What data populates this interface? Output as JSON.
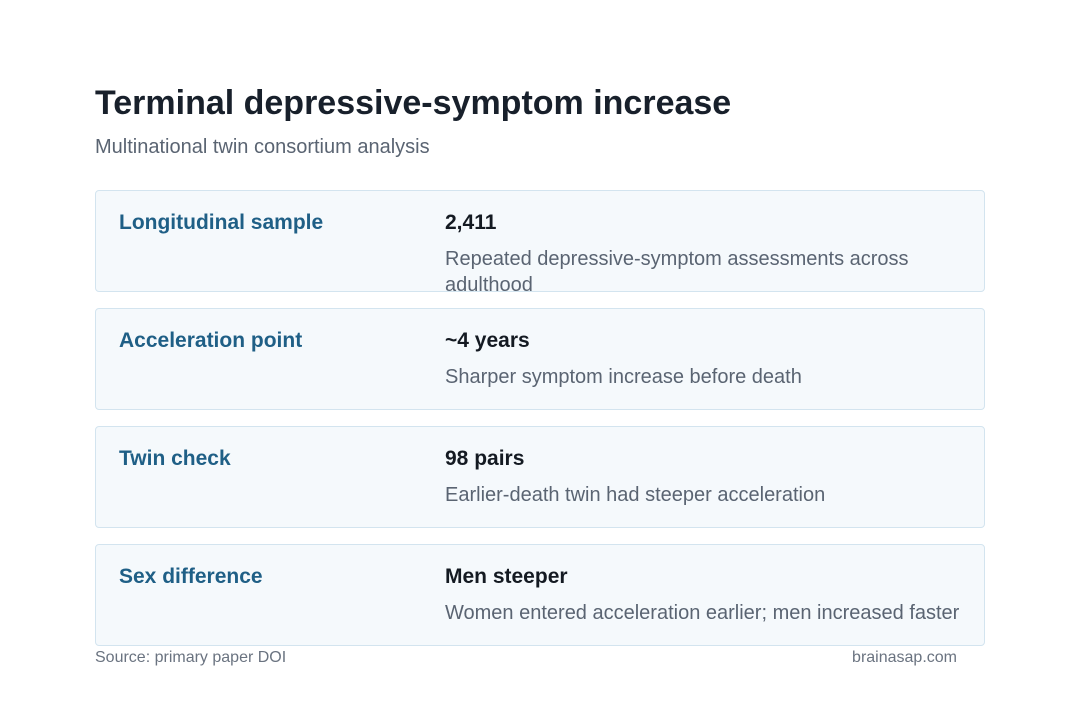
{
  "header": {
    "title": "Terminal depressive-symptom increase",
    "subtitle": "Multinational twin consortium analysis"
  },
  "cards": [
    {
      "label": "Longitudinal sample",
      "value": "2,411",
      "description": "Repeated depressive-symptom assessments across adulthood"
    },
    {
      "label": "Acceleration point",
      "value": "~4 years",
      "description": "Sharper symptom increase before death"
    },
    {
      "label": "Twin check",
      "value": "98 pairs",
      "description": "Earlier-death twin had steeper acceleration"
    },
    {
      "label": "Sex difference",
      "value": "Men steeper",
      "description": "Women entered acceleration earlier; men increased faster"
    }
  ],
  "footer": {
    "source": "Source: primary paper DOI",
    "site": "brainasap.com"
  }
}
